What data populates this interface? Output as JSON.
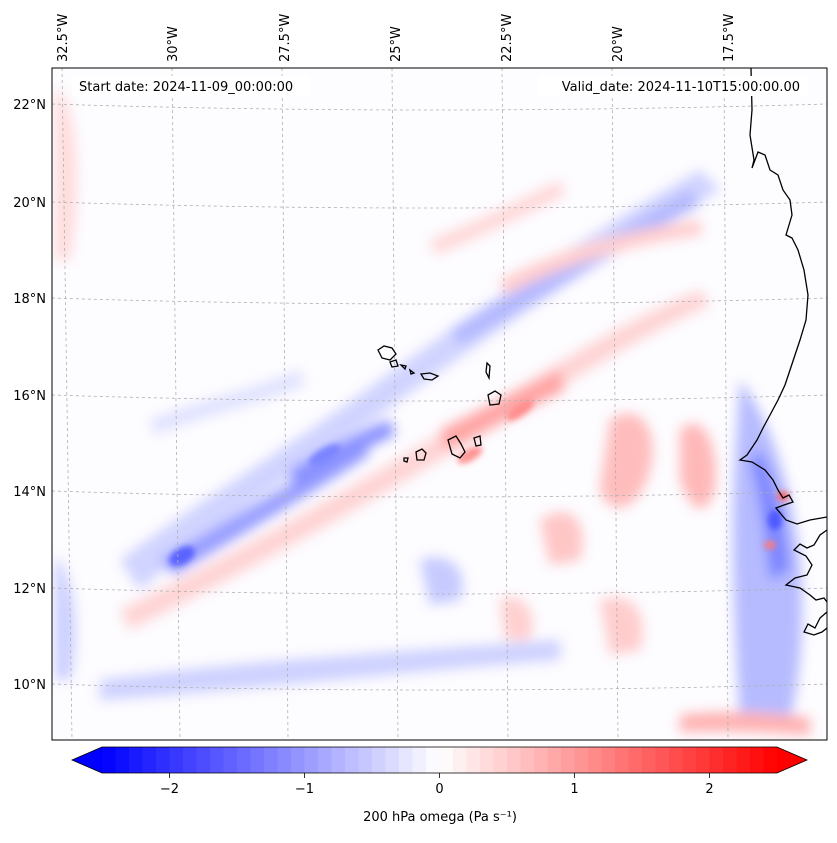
{
  "map": {
    "start_date": "Start date: 2024-11-09_00:00:00",
    "valid_date": "Valid_date: 2024-11-10T15:00:00.00",
    "lon_labels": [
      "32.5°W",
      "30°W",
      "27.5°W",
      "25°W",
      "22.5°W",
      "20°W",
      "17.5°W"
    ],
    "lat_labels": [
      "22°N",
      "20°N",
      "18°N",
      "16°N",
      "14°N",
      "12°N",
      "10°N"
    ],
    "field": "200 hPa omega",
    "units": "Pa s⁻¹"
  },
  "colorbar": {
    "label": "200 hPa omega (Pa s⁻¹)",
    "ticks": [
      "−2",
      "−1",
      "0",
      "1",
      "2"
    ],
    "tick_values": [
      -2,
      -1,
      0,
      1,
      2
    ],
    "range": [
      -2.5,
      2.5
    ],
    "colors": {
      "negative": "#0000ff",
      "neutral": "#ffffff",
      "positive": "#ff0000"
    }
  },
  "colors": {
    "coast": "#000000",
    "grid": "#b0b0b0"
  }
}
